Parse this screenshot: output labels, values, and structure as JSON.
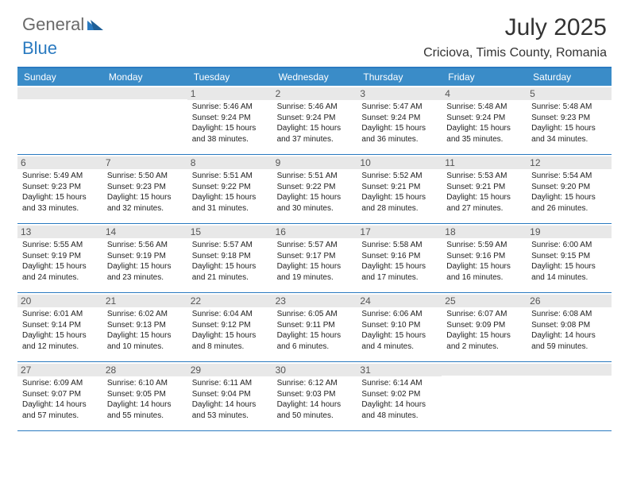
{
  "brand": {
    "text1": "General",
    "text2": "Blue"
  },
  "title": "July 2025",
  "location": "Criciova, Timis County, Romania",
  "colors": {
    "accent": "#2a7ac0",
    "header_bg": "#3a8cc8",
    "daynum_bg": "#e8e8e8",
    "text": "#222222",
    "muted": "#6a6a6a"
  },
  "weekdays": [
    "Sunday",
    "Monday",
    "Tuesday",
    "Wednesday",
    "Thursday",
    "Friday",
    "Saturday"
  ],
  "weeks": [
    [
      {
        "n": "",
        "empty": true
      },
      {
        "n": "",
        "empty": true
      },
      {
        "n": "1",
        "sunrise": "5:46 AM",
        "sunset": "9:24 PM",
        "daylight": "15 hours and 38 minutes."
      },
      {
        "n": "2",
        "sunrise": "5:46 AM",
        "sunset": "9:24 PM",
        "daylight": "15 hours and 37 minutes."
      },
      {
        "n": "3",
        "sunrise": "5:47 AM",
        "sunset": "9:24 PM",
        "daylight": "15 hours and 36 minutes."
      },
      {
        "n": "4",
        "sunrise": "5:48 AM",
        "sunset": "9:24 PM",
        "daylight": "15 hours and 35 minutes."
      },
      {
        "n": "5",
        "sunrise": "5:48 AM",
        "sunset": "9:23 PM",
        "daylight": "15 hours and 34 minutes."
      }
    ],
    [
      {
        "n": "6",
        "sunrise": "5:49 AM",
        "sunset": "9:23 PM",
        "daylight": "15 hours and 33 minutes."
      },
      {
        "n": "7",
        "sunrise": "5:50 AM",
        "sunset": "9:23 PM",
        "daylight": "15 hours and 32 minutes."
      },
      {
        "n": "8",
        "sunrise": "5:51 AM",
        "sunset": "9:22 PM",
        "daylight": "15 hours and 31 minutes."
      },
      {
        "n": "9",
        "sunrise": "5:51 AM",
        "sunset": "9:22 PM",
        "daylight": "15 hours and 30 minutes."
      },
      {
        "n": "10",
        "sunrise": "5:52 AM",
        "sunset": "9:21 PM",
        "daylight": "15 hours and 28 minutes."
      },
      {
        "n": "11",
        "sunrise": "5:53 AM",
        "sunset": "9:21 PM",
        "daylight": "15 hours and 27 minutes."
      },
      {
        "n": "12",
        "sunrise": "5:54 AM",
        "sunset": "9:20 PM",
        "daylight": "15 hours and 26 minutes."
      }
    ],
    [
      {
        "n": "13",
        "sunrise": "5:55 AM",
        "sunset": "9:19 PM",
        "daylight": "15 hours and 24 minutes."
      },
      {
        "n": "14",
        "sunrise": "5:56 AM",
        "sunset": "9:19 PM",
        "daylight": "15 hours and 23 minutes."
      },
      {
        "n": "15",
        "sunrise": "5:57 AM",
        "sunset": "9:18 PM",
        "daylight": "15 hours and 21 minutes."
      },
      {
        "n": "16",
        "sunrise": "5:57 AM",
        "sunset": "9:17 PM",
        "daylight": "15 hours and 19 minutes."
      },
      {
        "n": "17",
        "sunrise": "5:58 AM",
        "sunset": "9:16 PM",
        "daylight": "15 hours and 17 minutes."
      },
      {
        "n": "18",
        "sunrise": "5:59 AM",
        "sunset": "9:16 PM",
        "daylight": "15 hours and 16 minutes."
      },
      {
        "n": "19",
        "sunrise": "6:00 AM",
        "sunset": "9:15 PM",
        "daylight": "15 hours and 14 minutes."
      }
    ],
    [
      {
        "n": "20",
        "sunrise": "6:01 AM",
        "sunset": "9:14 PM",
        "daylight": "15 hours and 12 minutes."
      },
      {
        "n": "21",
        "sunrise": "6:02 AM",
        "sunset": "9:13 PM",
        "daylight": "15 hours and 10 minutes."
      },
      {
        "n": "22",
        "sunrise": "6:04 AM",
        "sunset": "9:12 PM",
        "daylight": "15 hours and 8 minutes."
      },
      {
        "n": "23",
        "sunrise": "6:05 AM",
        "sunset": "9:11 PM",
        "daylight": "15 hours and 6 minutes."
      },
      {
        "n": "24",
        "sunrise": "6:06 AM",
        "sunset": "9:10 PM",
        "daylight": "15 hours and 4 minutes."
      },
      {
        "n": "25",
        "sunrise": "6:07 AM",
        "sunset": "9:09 PM",
        "daylight": "15 hours and 2 minutes."
      },
      {
        "n": "26",
        "sunrise": "6:08 AM",
        "sunset": "9:08 PM",
        "daylight": "14 hours and 59 minutes."
      }
    ],
    [
      {
        "n": "27",
        "sunrise": "6:09 AM",
        "sunset": "9:07 PM",
        "daylight": "14 hours and 57 minutes."
      },
      {
        "n": "28",
        "sunrise": "6:10 AM",
        "sunset": "9:05 PM",
        "daylight": "14 hours and 55 minutes."
      },
      {
        "n": "29",
        "sunrise": "6:11 AM",
        "sunset": "9:04 PM",
        "daylight": "14 hours and 53 minutes."
      },
      {
        "n": "30",
        "sunrise": "6:12 AM",
        "sunset": "9:03 PM",
        "daylight": "14 hours and 50 minutes."
      },
      {
        "n": "31",
        "sunrise": "6:14 AM",
        "sunset": "9:02 PM",
        "daylight": "14 hours and 48 minutes."
      },
      {
        "n": "",
        "empty": true
      },
      {
        "n": "",
        "empty": true
      }
    ]
  ],
  "labels": {
    "sunrise": "Sunrise:",
    "sunset": "Sunset:",
    "daylight": "Daylight:"
  }
}
